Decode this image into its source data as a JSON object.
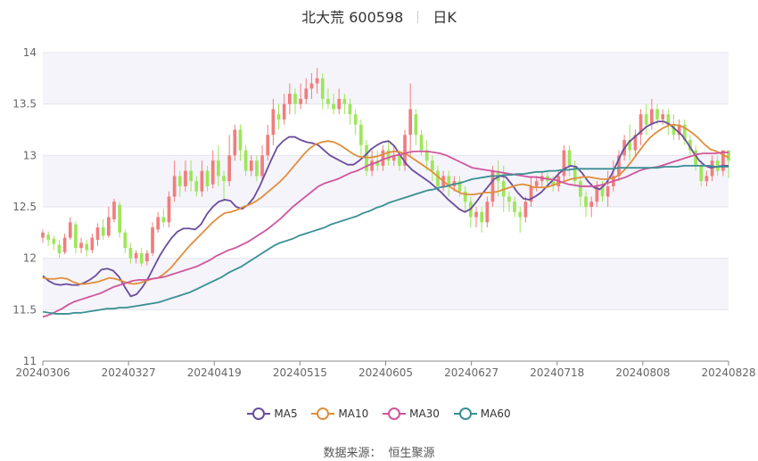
{
  "header": {
    "title": "北大荒 600598",
    "period": "日K"
  },
  "source": {
    "label": "数据来源：",
    "value": "恒生聚源"
  },
  "colors": {
    "up": "#f07d7d",
    "down": "#9ee65a",
    "MA5": "#6a4c9c",
    "MA10": "#e08e3c",
    "MA30": "#d0559c",
    "MA60": "#3a8f93"
  },
  "chart_data": {
    "type": "candlestick",
    "title": "北大荒 600598 日K",
    "ylim": [
      11,
      14
    ],
    "yticks": [
      11,
      11.5,
      12,
      12.5,
      13,
      13.5,
      14
    ],
    "xticks": [
      "20240306",
      "20240327",
      "20240419",
      "20240515",
      "20240605",
      "20240627",
      "20240718",
      "20240808",
      "20240828"
    ],
    "legend": [
      "MA5",
      "MA10",
      "MA30",
      "MA60"
    ],
    "candles": [
      [
        12.2,
        12.25,
        12.15,
        12.28
      ],
      [
        12.23,
        12.18,
        12.12,
        12.26
      ],
      [
        12.19,
        12.14,
        12.08,
        12.22
      ],
      [
        12.13,
        12.05,
        12.0,
        12.18
      ],
      [
        12.06,
        12.2,
        12.04,
        12.24
      ],
      [
        12.2,
        12.35,
        12.18,
        12.4
      ],
      [
        12.33,
        12.1,
        12.05,
        12.36
      ],
      [
        12.1,
        12.15,
        12.05,
        12.2
      ],
      [
        12.14,
        12.08,
        12.02,
        12.18
      ],
      [
        12.08,
        12.2,
        12.05,
        12.24
      ],
      [
        12.18,
        12.3,
        12.12,
        12.34
      ],
      [
        12.3,
        12.22,
        12.18,
        12.38
      ],
      [
        12.22,
        12.4,
        12.2,
        12.5
      ],
      [
        12.38,
        12.55,
        12.35,
        12.58
      ],
      [
        12.52,
        12.25,
        12.2,
        12.55
      ],
      [
        12.25,
        12.1,
        12.05,
        12.28
      ],
      [
        12.1,
        12.0,
        11.95,
        12.15
      ],
      [
        12.0,
        12.05,
        11.95,
        12.08
      ],
      [
        12.05,
        11.95,
        11.92,
        12.1
      ],
      [
        11.97,
        12.05,
        11.93,
        12.08
      ],
      [
        12.05,
        12.3,
        12.02,
        12.35
      ],
      [
        12.28,
        12.4,
        12.25,
        12.45
      ],
      [
        12.4,
        12.35,
        12.3,
        12.48
      ],
      [
        12.35,
        12.6,
        12.3,
        12.65
      ],
      [
        12.6,
        12.8,
        12.55,
        12.95
      ],
      [
        12.8,
        12.7,
        12.6,
        12.85
      ],
      [
        12.7,
        12.85,
        12.65,
        12.95
      ],
      [
        12.85,
        12.75,
        12.65,
        12.95
      ],
      [
        12.75,
        12.65,
        12.6,
        12.8
      ],
      [
        12.65,
        12.85,
        12.6,
        12.95
      ],
      [
        12.85,
        12.7,
        12.65,
        12.9
      ],
      [
        12.72,
        12.95,
        12.68,
        13.05
      ],
      [
        12.95,
        12.8,
        12.7,
        13.1
      ],
      [
        12.8,
        12.75,
        12.55,
        12.85
      ],
      [
        12.75,
        13.0,
        12.7,
        13.2
      ],
      [
        13.0,
        13.25,
        12.95,
        13.3
      ],
      [
        13.25,
        13.05,
        12.95,
        13.3
      ],
      [
        13.05,
        12.85,
        12.8,
        13.1
      ],
      [
        12.85,
        12.95,
        12.8,
        13.0
      ],
      [
        12.95,
        12.8,
        12.75,
        13.0
      ],
      [
        12.8,
        13.0,
        12.75,
        13.1
      ],
      [
        13.0,
        13.2,
        12.95,
        13.3
      ],
      [
        13.2,
        13.45,
        13.1,
        13.55
      ],
      [
        13.4,
        13.35,
        13.25,
        13.5
      ],
      [
        13.35,
        13.5,
        13.3,
        13.6
      ],
      [
        13.5,
        13.6,
        13.4,
        13.7
      ],
      [
        13.6,
        13.5,
        13.4,
        13.65
      ],
      [
        13.5,
        13.55,
        13.45,
        13.7
      ],
      [
        13.55,
        13.65,
        13.5,
        13.75
      ],
      [
        13.65,
        13.7,
        13.55,
        13.8
      ],
      [
        13.7,
        13.75,
        13.6,
        13.85
      ],
      [
        13.75,
        13.55,
        13.45,
        13.8
      ],
      [
        13.55,
        13.5,
        13.45,
        13.65
      ],
      [
        13.5,
        13.45,
        13.4,
        13.6
      ],
      [
        13.45,
        13.55,
        13.4,
        13.65
      ],
      [
        13.55,
        13.5,
        13.4,
        13.6
      ],
      [
        13.5,
        13.4,
        13.3,
        13.55
      ],
      [
        13.4,
        13.3,
        13.2,
        13.45
      ],
      [
        13.3,
        13.1,
        13.0,
        13.35
      ],
      [
        13.1,
        12.85,
        12.8,
        13.15
      ],
      [
        12.85,
        12.95,
        12.8,
        13.05
      ],
      [
        12.95,
        12.9,
        12.85,
        13.05
      ],
      [
        12.9,
        13.05,
        12.85,
        13.1
      ],
      [
        13.05,
        12.95,
        12.9,
        13.15
      ],
      [
        12.95,
        13.0,
        12.9,
        13.1
      ],
      [
        13.0,
        12.9,
        12.85,
        13.05
      ],
      [
        12.9,
        13.2,
        12.85,
        13.25
      ],
      [
        13.2,
        13.45,
        13.0,
        13.7
      ],
      [
        13.4,
        13.2,
        13.1,
        13.45
      ],
      [
        13.2,
        13.05,
        13.0,
        13.25
      ],
      [
        13.05,
        12.95,
        12.85,
        13.15
      ],
      [
        12.95,
        12.85,
        12.75,
        13.0
      ],
      [
        12.85,
        12.7,
        12.65,
        12.9
      ],
      [
        12.7,
        12.8,
        12.65,
        12.85
      ],
      [
        12.8,
        12.7,
        12.6,
        12.85
      ],
      [
        12.7,
        12.75,
        12.65,
        12.8
      ],
      [
        12.75,
        12.65,
        12.6,
        12.8
      ],
      [
        12.65,
        12.55,
        12.45,
        12.7
      ],
      [
        12.55,
        12.4,
        12.3,
        12.6
      ],
      [
        12.4,
        12.45,
        12.3,
        12.5
      ],
      [
        12.45,
        12.35,
        12.25,
        12.5
      ],
      [
        12.35,
        12.55,
        12.3,
        12.6
      ],
      [
        12.55,
        12.85,
        12.5,
        12.9
      ],
      [
        12.85,
        12.75,
        12.6,
        12.95
      ],
      [
        12.75,
        12.6,
        12.45,
        12.9
      ],
      [
        12.6,
        12.55,
        12.45,
        12.65
      ],
      [
        12.55,
        12.45,
        12.4,
        12.6
      ],
      [
        12.45,
        12.4,
        12.25,
        12.5
      ],
      [
        12.4,
        12.55,
        12.35,
        12.6
      ],
      [
        12.55,
        12.7,
        12.5,
        12.8
      ],
      [
        12.7,
        12.75,
        12.65,
        12.8
      ],
      [
        12.75,
        12.8,
        12.7,
        12.85
      ],
      [
        12.8,
        12.75,
        12.7,
        12.85
      ],
      [
        12.75,
        12.7,
        12.65,
        12.8
      ],
      [
        12.7,
        12.8,
        12.65,
        12.85
      ],
      [
        12.8,
        13.05,
        12.75,
        13.1
      ],
      [
        13.05,
        12.9,
        12.8,
        13.1
      ],
      [
        12.9,
        12.75,
        12.7,
        12.95
      ],
      [
        12.75,
        12.6,
        12.5,
        12.8
      ],
      [
        12.6,
        12.5,
        12.4,
        12.65
      ],
      [
        12.5,
        12.55,
        12.4,
        12.6
      ],
      [
        12.55,
        12.7,
        12.5,
        12.75
      ],
      [
        12.7,
        12.6,
        12.55,
        12.75
      ],
      [
        12.6,
        12.7,
        12.5,
        12.85
      ],
      [
        12.7,
        12.8,
        12.65,
        12.95
      ],
      [
        12.8,
        13.0,
        12.75,
        13.05
      ],
      [
        13.0,
        13.15,
        12.95,
        13.2
      ],
      [
        13.15,
        13.05,
        12.95,
        13.3
      ],
      [
        13.05,
        13.2,
        13.0,
        13.25
      ],
      [
        13.2,
        13.4,
        13.1,
        13.45
      ],
      [
        13.4,
        13.3,
        13.2,
        13.5
      ],
      [
        13.3,
        13.45,
        13.25,
        13.55
      ],
      [
        13.45,
        13.35,
        13.3,
        13.5
      ],
      [
        13.35,
        13.4,
        13.3,
        13.45
      ],
      [
        13.4,
        13.3,
        13.2,
        13.45
      ],
      [
        13.3,
        13.2,
        13.15,
        13.4
      ],
      [
        13.2,
        13.3,
        13.15,
        13.35
      ],
      [
        13.3,
        13.15,
        13.1,
        13.35
      ],
      [
        13.15,
        13.05,
        13.0,
        13.2
      ],
      [
        13.05,
        12.9,
        12.85,
        13.1
      ],
      [
        12.9,
        12.75,
        12.7,
        12.95
      ],
      [
        12.75,
        12.8,
        12.7,
        12.85
      ],
      [
        12.8,
        12.95,
        12.75,
        13.0
      ],
      [
        12.95,
        12.85,
        12.8,
        13.0
      ],
      [
        12.85,
        13.05,
        12.8,
        13.05
      ],
      [
        13.05,
        12.95,
        12.78,
        13.05
      ]
    ],
    "series": [
      {
        "name": "MA5",
        "values": [
          11.83,
          11.78,
          11.75,
          11.74,
          11.75,
          11.74,
          11.74,
          11.76,
          11.79,
          11.83,
          11.89,
          11.9,
          11.88,
          11.82,
          11.72,
          11.63,
          11.65,
          11.72,
          11.81,
          11.92,
          12.03,
          12.12,
          12.2,
          12.26,
          12.29,
          12.29,
          12.28,
          12.33,
          12.43,
          12.5,
          12.55,
          12.57,
          12.56,
          12.5,
          12.48,
          12.52,
          12.59,
          12.7,
          12.83,
          12.96,
          13.08,
          13.14,
          13.18,
          13.18,
          13.15,
          13.13,
          13.12,
          13.1,
          13.05,
          13.0,
          12.97,
          12.94,
          12.91,
          12.91,
          12.95,
          13.0,
          13.06,
          13.1,
          13.13,
          13.14,
          13.09,
          13.0,
          12.92,
          12.86,
          12.82,
          12.78,
          12.74,
          12.69,
          12.64,
          12.58,
          12.53,
          12.48,
          12.45,
          12.48,
          12.55,
          12.63,
          12.7,
          12.77,
          12.8,
          12.79,
          12.72,
          12.64,
          12.58,
          12.57,
          12.6,
          12.64,
          12.7,
          12.76,
          12.82,
          12.87,
          12.9,
          12.89,
          12.83,
          12.75,
          12.69,
          12.67,
          12.72,
          12.81,
          12.93,
          13.05,
          13.13,
          13.18,
          13.23,
          13.28,
          13.31,
          13.33,
          13.33,
          13.3,
          13.25,
          13.2,
          13.12,
          13.03,
          12.95,
          12.9,
          12.88,
          12.89,
          12.9,
          12.9
        ]
      },
      {
        "name": "MA10",
        "values": [
          11.81,
          11.8,
          11.8,
          11.81,
          11.8,
          11.77,
          11.75,
          11.75,
          11.76,
          11.77,
          11.79,
          11.81,
          11.8,
          11.78,
          11.76,
          11.75,
          11.76,
          11.78,
          11.8,
          11.81,
          11.85,
          11.9,
          11.97,
          12.04,
          12.11,
          12.17,
          12.23,
          12.29,
          12.35,
          12.4,
          12.44,
          12.45,
          12.47,
          12.5,
          12.52,
          12.55,
          12.59,
          12.64,
          12.69,
          12.74,
          12.8,
          12.87,
          12.94,
          13.01,
          13.07,
          13.11,
          13.13,
          13.14,
          13.13,
          13.1,
          13.06,
          13.02,
          12.99,
          12.98,
          12.98,
          12.99,
          13.01,
          13.03,
          13.04,
          13.03,
          13.01,
          12.97,
          12.93,
          12.89,
          12.85,
          12.8,
          12.75,
          12.7,
          12.66,
          12.63,
          12.62,
          12.62,
          12.63,
          12.64,
          12.64,
          12.65,
          12.67,
          12.69,
          12.71,
          12.72,
          12.71,
          12.69,
          12.69,
          12.69,
          12.71,
          12.73,
          12.75,
          12.77,
          12.78,
          12.79,
          12.79,
          12.78,
          12.77,
          12.77,
          12.78,
          12.81,
          12.87,
          12.94,
          13.02,
          13.1,
          13.17,
          13.22,
          13.26,
          13.29,
          13.3,
          13.29,
          13.26,
          13.22,
          13.17,
          13.11,
          13.06,
          13.04,
          13.01,
          12.98
        ]
      },
      {
        "name": "MA30",
        "values": [
          11.43,
          11.45,
          11.48,
          11.51,
          11.55,
          11.58,
          11.6,
          11.62,
          11.64,
          11.66,
          11.69,
          11.72,
          11.74,
          11.76,
          11.78,
          11.79,
          11.79,
          11.8,
          11.81,
          11.82,
          11.84,
          11.86,
          11.88,
          11.9,
          11.92,
          11.95,
          11.98,
          12.02,
          12.05,
          12.08,
          12.1,
          12.13,
          12.16,
          12.2,
          12.24,
          12.28,
          12.33,
          12.38,
          12.44,
          12.5,
          12.55,
          12.6,
          12.65,
          12.7,
          12.73,
          12.75,
          12.77,
          12.8,
          12.83,
          12.85,
          12.88,
          12.91,
          12.93,
          12.96,
          12.98,
          13.0,
          13.01,
          13.03,
          13.04,
          13.04,
          13.04,
          13.03,
          13.02,
          13.0,
          12.97,
          12.94,
          12.91,
          12.88,
          12.87,
          12.86,
          12.85,
          12.84,
          12.83,
          12.82,
          12.81,
          12.8,
          12.79,
          12.79,
          12.78,
          12.77,
          12.76,
          12.74,
          12.72,
          12.71,
          12.7,
          12.7,
          12.7,
          12.71,
          12.73,
          12.75,
          12.77,
          12.79,
          12.82,
          12.85,
          12.87,
          12.88,
          12.89,
          12.91,
          12.93,
          12.95,
          12.97,
          12.99,
          13.01,
          13.02,
          13.02,
          13.02,
          13.03,
          13.03
        ]
      },
      {
        "name": "MA60",
        "values": [
          11.48,
          11.47,
          11.46,
          11.46,
          11.46,
          11.47,
          11.47,
          11.48,
          11.49,
          11.5,
          11.51,
          11.51,
          11.52,
          11.52,
          11.53,
          11.54,
          11.55,
          11.56,
          11.57,
          11.59,
          11.61,
          11.63,
          11.65,
          11.67,
          11.7,
          11.73,
          11.76,
          11.79,
          11.82,
          11.86,
          11.89,
          11.92,
          11.96,
          12.0,
          12.04,
          12.08,
          12.12,
          12.15,
          12.17,
          12.19,
          12.22,
          12.24,
          12.26,
          12.28,
          12.3,
          12.33,
          12.35,
          12.37,
          12.39,
          12.41,
          12.44,
          12.46,
          12.49,
          12.51,
          12.54,
          12.56,
          12.58,
          12.6,
          12.62,
          12.64,
          12.66,
          12.67,
          12.69,
          12.7,
          12.72,
          12.73,
          12.75,
          12.77,
          12.78,
          12.79,
          12.8,
          12.8,
          12.81,
          12.81,
          12.82,
          12.82,
          12.83,
          12.84,
          12.84,
          12.85,
          12.85,
          12.86,
          12.86,
          12.87,
          12.87,
          12.87,
          12.87,
          12.87,
          12.87,
          12.87,
          12.88,
          12.88,
          12.88,
          12.88,
          12.88,
          12.88,
          12.88,
          12.89,
          12.89,
          12.89,
          12.9,
          12.9,
          12.9,
          12.9,
          12.9,
          12.89,
          12.89,
          12.89
        ]
      }
    ]
  }
}
